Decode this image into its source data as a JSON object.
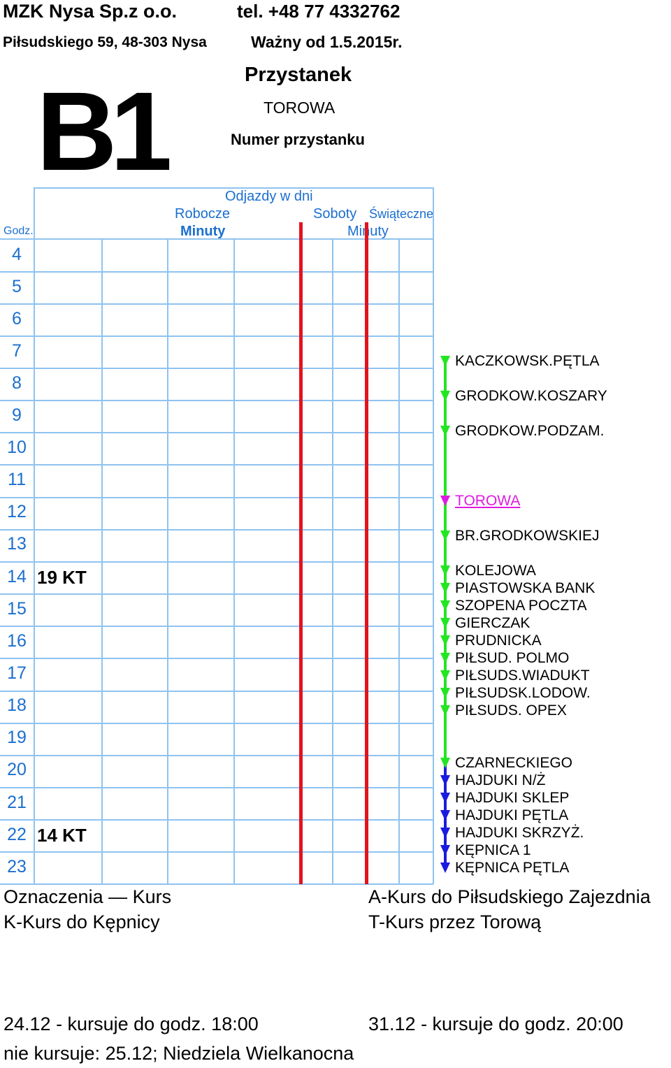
{
  "header": {
    "company": "MZK Nysa Sp.z o.o.",
    "phone": "tel. +48 77 4332762",
    "address": "Piłsudskiego 59, 48-303 Nysa",
    "valid_from": "Ważny od 1.5.2015r.",
    "route_number": "B1",
    "stop_label": "Przystanek",
    "stop_name": "TOROWA",
    "stop_number_label": "Numer przystanku"
  },
  "table": {
    "departures_header": "Odjazdy w dni",
    "col_weekdays": "Robocze",
    "col_saturdays": "Soboty",
    "col_holidays": "Świąteczne",
    "hour_header": "Godz.",
    "minutes_header_1": "Minuty",
    "minutes_header_2": "Minuty",
    "rows": [
      {
        "hour": "4",
        "weekday": ""
      },
      {
        "hour": "5",
        "weekday": ""
      },
      {
        "hour": "6",
        "weekday": ""
      },
      {
        "hour": "7",
        "weekday": ""
      },
      {
        "hour": "8",
        "weekday": ""
      },
      {
        "hour": "9",
        "weekday": ""
      },
      {
        "hour": "10",
        "weekday": ""
      },
      {
        "hour": "11",
        "weekday": ""
      },
      {
        "hour": "12",
        "weekday": ""
      },
      {
        "hour": "13",
        "weekday": ""
      },
      {
        "hour": "14",
        "weekday": "19 KT"
      },
      {
        "hour": "15",
        "weekday": ""
      },
      {
        "hour": "16",
        "weekday": ""
      },
      {
        "hour": "17",
        "weekday": ""
      },
      {
        "hour": "18",
        "weekday": ""
      },
      {
        "hour": "19",
        "weekday": ""
      },
      {
        "hour": "20",
        "weekday": ""
      },
      {
        "hour": "21",
        "weekday": ""
      },
      {
        "hour": "22",
        "weekday": "14 KT"
      },
      {
        "hour": "23",
        "weekday": ""
      }
    ]
  },
  "stops": [
    {
      "name": "KACZKOWSK.PĘTLA",
      "color": "#22e622",
      "current": false
    },
    {
      "name": "GRODKOW.KOSZARY",
      "color": "#22e622",
      "current": false
    },
    {
      "name": "GRODKOW.PODZAM.",
      "color": "#22e622",
      "current": false
    },
    {
      "name": "TOROWA",
      "color": "#e01ae0",
      "current": true
    },
    {
      "name": "BR.GRODKOWSKIEJ",
      "color": "#22e622",
      "current": false
    },
    {
      "name": "KOLEJOWA",
      "color": "#22e622",
      "current": false
    },
    {
      "name": "PIASTOWSKA BANK",
      "color": "#22e622",
      "current": false
    },
    {
      "name": "SZOPENA POCZTA",
      "color": "#22e622",
      "current": false
    },
    {
      "name": "GIERCZAK",
      "color": "#22e622",
      "current": false
    },
    {
      "name": "PRUDNICKA",
      "color": "#22e622",
      "current": false
    },
    {
      "name": "PIŁSUD. POLMO",
      "color": "#22e622",
      "current": false
    },
    {
      "name": "PIŁSUDS.WIADUKT",
      "color": "#22e622",
      "current": false
    },
    {
      "name": "PIŁSUDSK.LODOW.",
      "color": "#22e622",
      "current": false
    },
    {
      "name": "PIŁSUDS. OPEX",
      "color": "#22e622",
      "current": false
    },
    {
      "name": "CZARNECKIEGO",
      "color": "#22e622",
      "current": false
    },
    {
      "name": "HAJDUKI N/Ż",
      "color": "#1a1ae0",
      "current": false
    },
    {
      "name": "HAJDUKI SKLEP",
      "color": "#1a1ae0",
      "current": false
    },
    {
      "name": "HAJDUKI PĘTLA",
      "color": "#1a1ae0",
      "current": false
    },
    {
      "name": "HAJDUKI SKRZYŻ.",
      "color": "#1a1ae0",
      "current": false
    },
    {
      "name": "KĘPNICA 1",
      "color": "#1a1ae0",
      "current": false
    },
    {
      "name": "KĘPNICA PĘTLA",
      "color": "#1a1ae0",
      "current": false
    }
  ],
  "legend": {
    "title": "Oznaczenia — Kurs",
    "k": "K-Kurs do Kępnicy",
    "a": "A-Kurs do Piłsudskiego Zajezdnia",
    "t": "T-Kurs przez Torową"
  },
  "notes": {
    "dec24": "24.12 - kursuje do godz. 18:00",
    "dec31": "31.12 - kursuje do godz. 20:00",
    "no_service": "nie kursuje: 25.12; Niedziela Wielkanocna"
  },
  "colors": {
    "grid": "#8fc3f0",
    "hour_text": "#1b6fcf",
    "separator": "#e1141e",
    "line_green": "#22e622",
    "line_blue": "#1a1ae0",
    "current_stop": "#e01ae0"
  }
}
